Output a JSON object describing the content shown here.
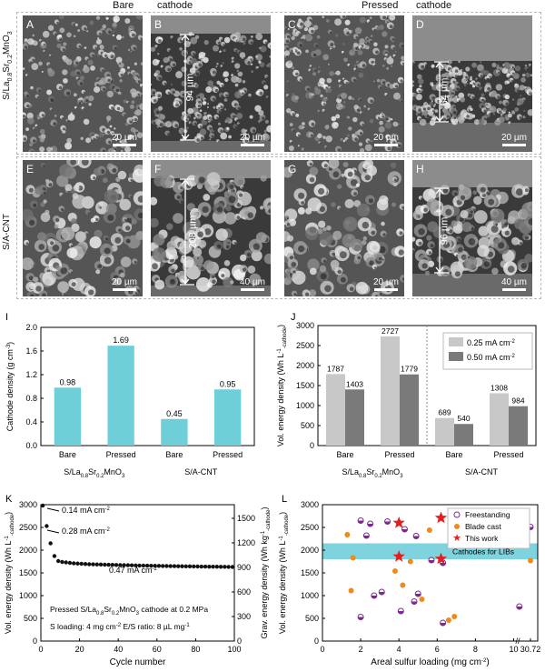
{
  "header": {
    "bare": "Bare",
    "cathode1": "cathode",
    "pressed": "Pressed",
    "cathode2": "cathode"
  },
  "rows": {
    "row1": "S/La0.8Sr0.2MnO3",
    "row2": "S/A-CNT"
  },
  "panels": [
    {
      "id": "A",
      "scale": "20 µm",
      "thickness": ""
    },
    {
      "id": "B",
      "scale": "20 µm",
      "thickness": "94 µm"
    },
    {
      "id": "C",
      "scale": "20 µm",
      "thickness": ""
    },
    {
      "id": "D",
      "scale": "20 µm",
      "thickness": "54 µm"
    },
    {
      "id": "E",
      "scale": "20 µm",
      "thickness": ""
    },
    {
      "id": "F",
      "scale": "40 µm",
      "thickness": "208 µm"
    },
    {
      "id": "G",
      "scale": "20 µm",
      "thickness": ""
    },
    {
      "id": "H",
      "scale": "40 µm",
      "thickness": "96 µm"
    }
  ],
  "chart_data": [
    {
      "panel": "I",
      "type": "bar",
      "ylabel": "Cathode density (g cm-3)",
      "ylim": [
        0,
        2.0
      ],
      "yticks": [
        "0.0",
        "0.4",
        "0.8",
        "1.2",
        "1.6",
        "2.0"
      ],
      "categories": [
        "Bare",
        "Pressed",
        "Bare",
        "Pressed"
      ],
      "groups": [
        "S/La0.8Sr0.2MnO3",
        "S/A-CNT"
      ],
      "values": [
        0.98,
        1.69,
        0.45,
        0.95
      ],
      "value_labels": [
        "0.98",
        "1.69",
        "0.45",
        "0.95"
      ],
      "color": "#6fcfd9"
    },
    {
      "panel": "J",
      "type": "bar",
      "ylabel": "Vol. energy density (Wh L-1-cathode)",
      "ylim": [
        0,
        3000
      ],
      "yticks": [
        "0",
        "500",
        "1000",
        "1500",
        "2000",
        "2500",
        "3000"
      ],
      "categories": [
        "Bare",
        "Pressed",
        "Bare",
        "Pressed"
      ],
      "groups": [
        "S/La0.8Sr0.2MnO3",
        "S/A-CNT"
      ],
      "series": [
        {
          "name": "0.25 mA cm-2",
          "values": [
            1787,
            2727,
            689,
            1308
          ],
          "labels": [
            "1787",
            "2727",
            "689",
            "1308"
          ],
          "color": "#c8c8c8"
        },
        {
          "name": "0.50 mA cm-2",
          "values": [
            1403,
            1779,
            540,
            984
          ],
          "labels": [
            "1403",
            "1779",
            "540",
            "984"
          ],
          "color": "#7a7a7a"
        }
      ],
      "legend": "top-right"
    },
    {
      "panel": "K",
      "type": "scatter",
      "xlabel": "Cycle number",
      "ylabel": "Vol. energy density (Wh L-1-cathode)",
      "ylabel_right": "Grav. energy density (Wh kg-1-cathode)",
      "xlim": [
        0,
        100
      ],
      "ylim": [
        0,
        3000
      ],
      "xticks": [
        "0",
        "20",
        "40",
        "60",
        "80",
        "100"
      ],
      "yticks": [
        "0",
        "500",
        "1000",
        "1500",
        "2000",
        "2500",
        "3000"
      ],
      "yticks_right": [
        "0",
        "300",
        "600",
        "900",
        "1200",
        "1500"
      ],
      "x": [
        1,
        3,
        5,
        7,
        9,
        11,
        13,
        15,
        17,
        19,
        21,
        23,
        25,
        27,
        29,
        31,
        33,
        35,
        37,
        39,
        41,
        43,
        45,
        47,
        49,
        51,
        53,
        55,
        57,
        59,
        61,
        63,
        65,
        67,
        69,
        71,
        73,
        75,
        77,
        79,
        81,
        83,
        85,
        87,
        89,
        91,
        93,
        95,
        97,
        99
      ],
      "y": [
        2980,
        2530,
        2150,
        1870,
        1760,
        1740,
        1730,
        1720,
        1710,
        1705,
        1700,
        1695,
        1690,
        1688,
        1685,
        1683,
        1680,
        1678,
        1676,
        1674,
        1672,
        1670,
        1668,
        1666,
        1664,
        1662,
        1660,
        1658,
        1656,
        1655,
        1654,
        1652,
        1650,
        1649,
        1648,
        1646,
        1645,
        1644,
        1643,
        1642,
        1640,
        1639,
        1638,
        1637,
        1636,
        1635,
        1634,
        1633,
        1632,
        1630
      ],
      "annotations": [
        "0.14 mA cm-2",
        "0.28 mA cm-2",
        "0.47 mA cm-2"
      ],
      "notes": [
        "Pressed S/La0.8Sr0.2MnO3 cathode at 0.2 MPa",
        "S loading: 4 mg cm-2",
        "E/S ratio: 8 µL mg-1"
      ]
    },
    {
      "panel": "L",
      "type": "scatter",
      "xlabel": "Areal sulfur loading (mg cm-2)",
      "ylabel": "Vol. energy density (Wh L-1-cathode)",
      "xlim": [
        0,
        10.5
      ],
      "ylim": [
        0,
        3000
      ],
      "xticks": [
        "0",
        "2",
        "4",
        "6",
        "8",
        "10",
        "30.72"
      ],
      "yticks": [
        "0",
        "500",
        "1000",
        "1500",
        "2000",
        "2500",
        "3000"
      ],
      "band_label": "Cathodes for LIBs",
      "band": [
        1800,
        2150
      ],
      "series": [
        {
          "name": "Freestanding",
          "color": "#7a2a8c",
          "x": [
            2.0,
            2.5,
            2.3,
            2.0,
            2.7,
            3.1,
            3.4,
            4.1,
            4.3,
            4.8,
            5.0,
            4.9,
            5.7,
            6.3,
            6.3,
            10.3,
            10.9
          ],
          "y": [
            2650,
            2580,
            2320,
            530,
            1000,
            1080,
            2630,
            660,
            2460,
            870,
            1040,
            2310,
            1780,
            400,
            1720,
            760,
            2510
          ]
        },
        {
          "name": "Blade cast",
          "color": "#f08a1a",
          "x": [
            1.3,
            1.5,
            1.6,
            3.8,
            4.2,
            4.6,
            5.2,
            5.6,
            6.6,
            6.9,
            10.5
          ],
          "y": [
            2340,
            1110,
            1830,
            1540,
            1230,
            1750,
            920,
            2440,
            460,
            540,
            1770
          ]
        },
        {
          "name": "This work",
          "color": "#e02020",
          "x": [
            4.0,
            4.0,
            6.2,
            6.2
          ],
          "y": [
            2600,
            1860,
            2710,
            1810
          ]
        }
      ],
      "legend": "top-right"
    }
  ],
  "ch": {
    "I": {
      "letter": "I"
    },
    "J": {
      "letter": "J"
    },
    "K": {
      "letter": "K"
    },
    "L": {
      "letter": "L"
    }
  }
}
